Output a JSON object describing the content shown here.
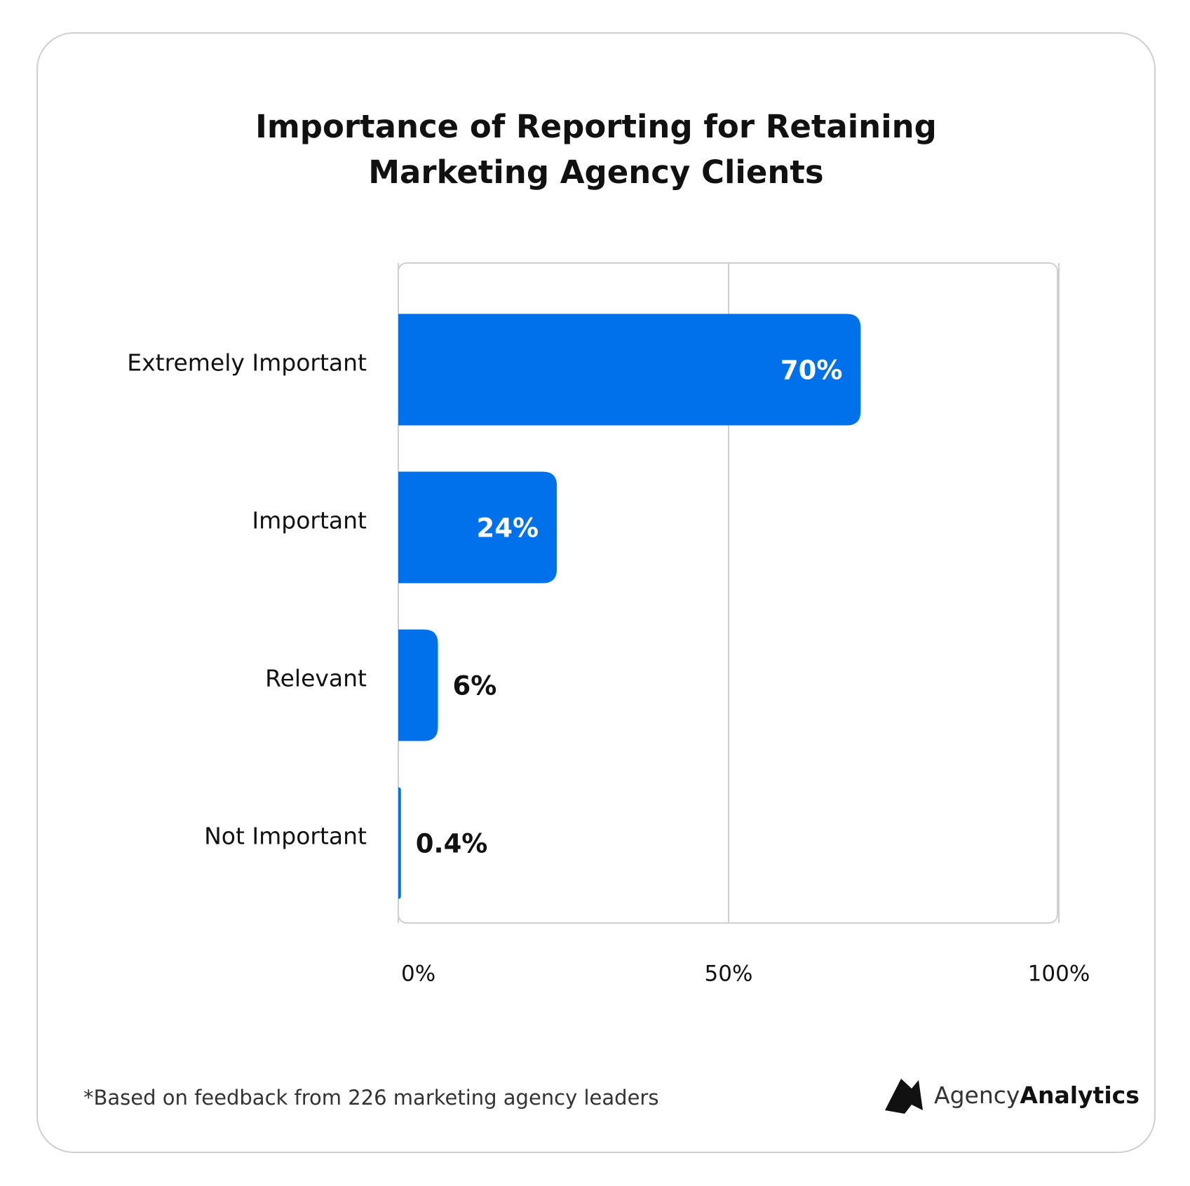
{
  "chart_data": {
    "type": "bar",
    "orientation": "horizontal",
    "title": [
      "Importance of Reporting for Retaining",
      "Marketing Agency Clients"
    ],
    "categories": [
      "Extremely Important",
      "Important",
      "Relevant",
      "Not Important"
    ],
    "values": [
      70,
      24,
      6,
      0.4
    ],
    "value_labels": [
      "70%",
      "24%",
      "6%",
      "0.4%"
    ],
    "color": "#0071eb",
    "xlim": [
      0,
      100
    ],
    "xticks": [
      {
        "value": 0,
        "label": "0%"
      },
      {
        "value": 50,
        "label": "50%"
      },
      {
        "value": 100,
        "label": "100%"
      }
    ],
    "grid": true,
    "footnote": "*Based on feedback from 226 marketing agency leaders",
    "brand": [
      "Agency",
      "Analytics"
    ]
  }
}
